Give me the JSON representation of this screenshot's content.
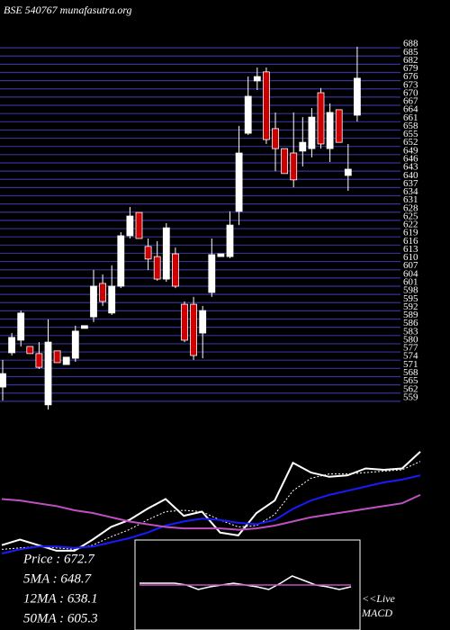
{
  "chart_data": [
    {
      "type": "candlestick",
      "title": "BSE 540767 munafasutra.org",
      "up_color": "#ffffff",
      "down_color": "#cc0000",
      "grid_color": "#33339a",
      "ylim": [
        556,
        690
      ],
      "yticks": [
        688,
        685,
        682,
        679,
        676,
        673,
        670,
        667,
        664,
        661,
        658,
        655,
        652,
        649,
        646,
        643,
        640,
        637,
        634,
        631,
        628,
        625,
        622,
        619,
        616,
        613,
        610,
        607,
        604,
        601,
        598,
        595,
        592,
        589,
        586,
        583,
        580,
        577,
        574,
        571,
        568,
        565,
        562,
        559
      ],
      "open": [
        564.2,
        576.7,
        581.3,
        579.0,
        576.4,
        557.7,
        577.4,
        572.4,
        574.7,
        585.6,
        589.8,
        602.0,
        591.2,
        601.0,
        619.4,
        627.9,
        615.5,
        611.8,
        603.6,
        612.8,
        594.4,
        594.4,
        583.9,
        598.7,
        611.8,
        611.8,
        628.3,
        656.8,
        675.9,
        679.2,
        658.5,
        651.2,
        649.6,
        650.3,
        651.2,
        671.6,
        651.2,
        665.4,
        641.4,
        663.4
      ],
      "high": [
        574.1,
        583.9,
        592.1,
        579.0,
        580.6,
        588.9,
        577.4,
        575.1,
        586.6,
        586.6,
        606.9,
        605.3,
        608.6,
        620.7,
        629.9,
        627.9,
        618.4,
        617.4,
        624.0,
        615.1,
        595.4,
        597.1,
        593.8,
        618.4,
        612.8,
        628.3,
        659.5,
        677.5,
        680.8,
        680.8,
        664.4,
        651.2,
        664.4,
        662.7,
        666.0,
        673.3,
        667.7,
        665.4,
        652.9,
        688.4
      ],
      "low": [
        559.3,
        575.7,
        579.0,
        576.4,
        570.8,
        556.0,
        573.1,
        572.4,
        573.4,
        585.6,
        587.9,
        593.8,
        590.5,
        600.3,
        618.4,
        618.4,
        606.9,
        603.0,
        602.6,
        600.3,
        580.6,
        574.1,
        574.7,
        597.1,
        611.8,
        611.2,
        623.3,
        656.2,
        672.6,
        652.9,
        643.0,
        642.1,
        637.1,
        644.7,
        648.0,
        651.2,
        646.3,
        653.5,
        635.8,
        661.1
      ],
      "close": [
        569.1,
        582.3,
        591.2,
        576.4,
        571.4,
        580.6,
        573.1,
        575.1,
        584.6,
        586.6,
        601.0,
        595.4,
        601.0,
        619.4,
        626.6,
        618.4,
        610.9,
        603.6,
        622.3,
        601.0,
        581.3,
        575.7,
        592.1,
        612.5,
        612.8,
        623.3,
        649.6,
        670.3,
        677.5,
        654.5,
        651.2,
        642.1,
        639.8,
        653.5,
        662.7,
        652.9,
        664.4,
        653.5,
        643.7,
        676.9
      ]
    },
    {
      "type": "line",
      "ylim": [
        0,
        100
      ],
      "series": [
        {
          "color": "#ffffff",
          "style": "solid",
          "values": [
            6,
            10,
            6,
            2,
            2,
            10,
            19,
            24,
            32,
            39,
            27,
            30,
            15,
            13,
            29,
            38,
            65,
            58,
            55,
            56,
            61,
            60,
            61,
            73
          ]
        },
        {
          "color": "#ffffff",
          "style": "dotted",
          "values": [
            3,
            4,
            5,
            4,
            3,
            6,
            12,
            17,
            24,
            30,
            31,
            30,
            24,
            19,
            20,
            28,
            45,
            54,
            57,
            57,
            58,
            59,
            60,
            66
          ]
        },
        {
          "color": "#1a1aff",
          "style": "solid",
          "values": [
            0,
            3,
            5,
            5,
            4,
            5,
            8,
            11,
            15,
            20,
            23,
            25,
            24,
            22,
            21,
            24,
            32,
            38,
            42,
            45,
            48,
            51,
            53,
            56
          ]
        },
        {
          "color": "#c050c0",
          "style": "solid",
          "values": [
            39,
            38,
            36,
            34,
            31,
            29,
            26,
            23,
            21,
            19,
            18,
            18,
            18,
            17,
            18,
            20,
            23,
            26,
            28,
            30,
            32,
            34,
            36,
            42
          ]
        }
      ],
      "info": [
        "Price : 672.7",
        "5MA : 648.7",
        "12MA : 638.1",
        "50MA : 605.3"
      ]
    },
    {
      "type": "macd",
      "ylim": [
        -10,
        10
      ],
      "label": [
        "<<Live",
        "MACD"
      ],
      "series": [
        {
          "color": "#ffffff",
          "values": [
            0.4,
            0.4,
            0.4,
            0.4,
            0,
            -1,
            -0.4,
            0,
            0.4,
            0,
            -0.4,
            -1,
            0.4,
            2,
            1,
            0,
            -0.4,
            -1,
            -0.4
          ]
        },
        {
          "color": "#c050c0",
          "values": [
            0,
            0,
            0,
            0,
            0,
            0,
            0,
            0,
            0,
            0,
            0,
            0,
            0,
            0,
            0,
            0,
            0,
            0,
            0
          ]
        }
      ]
    }
  ]
}
